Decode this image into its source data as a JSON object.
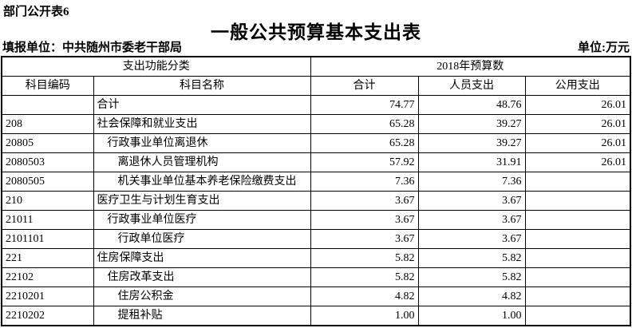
{
  "page": {
    "sheet_label": "部门公开表6",
    "title": "一般公共预算基本支出表",
    "reporting_unit": "填报单位：中共随州市委老干部局",
    "unit_note": "单位:万元"
  },
  "table": {
    "header": {
      "function_group": "支出功能分类",
      "budget_group": "2018年预算数",
      "columns": [
        "科目编码",
        "科目名称",
        "合计",
        "人员支出",
        "公用支出"
      ]
    },
    "rows": [
      {
        "code": "",
        "name": "合计",
        "indent": 0,
        "total": "74.77",
        "personnel": "48.76",
        "public": "26.01"
      },
      {
        "code": "208",
        "name": "社会保障和就业支出",
        "indent": 0,
        "total": "65.28",
        "personnel": "39.27",
        "public": "26.01"
      },
      {
        "code": "20805",
        "name": "行政事业单位离退休",
        "indent": 1,
        "total": "65.28",
        "personnel": "39.27",
        "public": "26.01"
      },
      {
        "code": "2080503",
        "name": "离退休人员管理机构",
        "indent": 2,
        "total": "57.92",
        "personnel": "31.91",
        "public": "26.01"
      },
      {
        "code": "2080505",
        "name": "机关事业单位基本养老保险缴费支出",
        "indent": 2,
        "total": "7.36",
        "personnel": "7.36",
        "public": ""
      },
      {
        "code": "210",
        "name": "医疗卫生与计划生育支出",
        "indent": 0,
        "total": "3.67",
        "personnel": "3.67",
        "public": ""
      },
      {
        "code": "21011",
        "name": "行政事业单位医疗",
        "indent": 1,
        "total": "3.67",
        "personnel": "3.67",
        "public": ""
      },
      {
        "code": "2101101",
        "name": "行政单位医疗",
        "indent": 2,
        "total": "3.67",
        "personnel": "3.67",
        "public": ""
      },
      {
        "code": "221",
        "name": "住房保障支出",
        "indent": 0,
        "total": "5.82",
        "personnel": "5.82",
        "public": ""
      },
      {
        "code": "22102",
        "name": "住房改革支出",
        "indent": 1,
        "total": "5.82",
        "personnel": "5.82",
        "public": ""
      },
      {
        "code": "2210201",
        "name": "住房公积金",
        "indent": 2,
        "total": "4.82",
        "personnel": "4.82",
        "public": ""
      },
      {
        "code": "2210202",
        "name": "提租补贴",
        "indent": 2,
        "total": "1.00",
        "personnel": "1.00",
        "public": ""
      }
    ]
  }
}
